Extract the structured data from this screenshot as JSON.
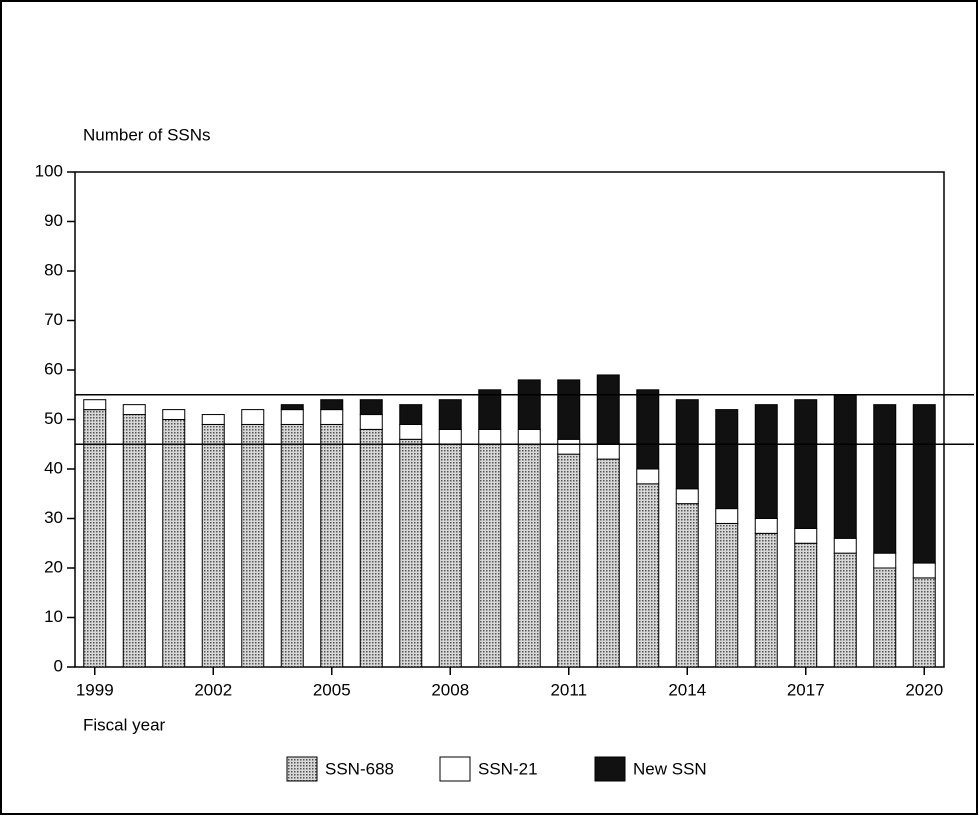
{
  "chart_data": {
    "type": "stacked_bar",
    "y_axis_label": "Number of SSNs",
    "x_axis_label": "Fiscal year",
    "categories": [
      "1999",
      null,
      null,
      "2002",
      null,
      null,
      "2005",
      null,
      null,
      "2008",
      null,
      null,
      "2011",
      null,
      null,
      "2014",
      null,
      null,
      "2017",
      null,
      null,
      "2020"
    ],
    "series": [
      {
        "name": "SSN-688",
        "color": "#a9a9a9",
        "values": [
          52,
          51,
          50,
          49,
          49,
          49,
          49,
          48,
          46,
          45,
          45,
          45,
          43,
          42,
          37,
          33,
          29,
          27,
          25,
          23,
          20,
          18
        ]
      },
      {
        "name": "SSN-21",
        "color": "#ffffff",
        "values": [
          2,
          2,
          2,
          2,
          3,
          3,
          3,
          3,
          3,
          3,
          3,
          3,
          3,
          3,
          3,
          3,
          3,
          3,
          3,
          3,
          3,
          3
        ]
      },
      {
        "name": "New SSN",
        "color": "#111111",
        "values": [
          0,
          0,
          0,
          0,
          0,
          1,
          2,
          3,
          4,
          6,
          8,
          10,
          12,
          14,
          16,
          18,
          20,
          23,
          26,
          29,
          30,
          32
        ]
      }
    ],
    "reference_lines": [
      45,
      55
    ],
    "ylim": [
      0,
      100
    ],
    "yticks": [
      0,
      10,
      20,
      30,
      40,
      50,
      60,
      70,
      80,
      90,
      100
    ],
    "legend": "bottom"
  }
}
